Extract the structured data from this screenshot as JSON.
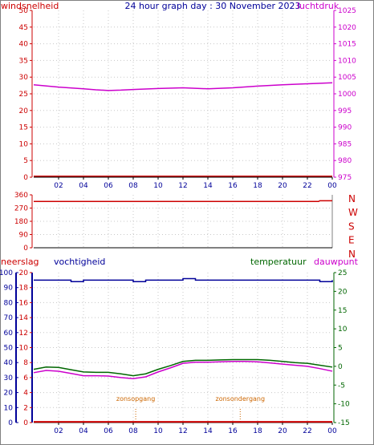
{
  "title": "24 hour graph day : 30 November 2023",
  "colors": {
    "wind": "#cc0000",
    "pressure": "#cc00cc",
    "direction": "#cc0000",
    "humidity": "#000099",
    "temperature": "#006600",
    "dewpoint": "#cc00cc",
    "rain": "#cc0000",
    "sun": "#cc6600",
    "grid": "#c8c8c8",
    "frame": "#000000"
  },
  "x_ticks": [
    "02",
    "04",
    "06",
    "08",
    "10",
    "12",
    "14",
    "16",
    "18",
    "20",
    "22",
    "00"
  ],
  "chart_data": [
    {
      "type": "line",
      "left_axis_label": "windsnelheid",
      "right_axis_label": "luchtdruk",
      "left_ylim": [
        0,
        50
      ],
      "left_ticks": [
        "0",
        "5",
        "10",
        "15",
        "20",
        "25",
        "30",
        "35",
        "40",
        "45",
        "50"
      ],
      "right_ylim": [
        975,
        1025
      ],
      "right_ticks": [
        "975",
        "980",
        "985",
        "990",
        "995",
        "1000",
        "1005",
        "1010",
        "1015",
        "1020",
        "1025"
      ],
      "x_hours": [
        0,
        2,
        4,
        5,
        6,
        7,
        8,
        10,
        12,
        14,
        16,
        18,
        20,
        22,
        24
      ],
      "series": [
        {
          "name": "windsnelheid",
          "axis": "left",
          "values": [
            0.3,
            0.3,
            0.3,
            0.3,
            0.3,
            0.3,
            0.3,
            0.3,
            0.3,
            0.3,
            0.3,
            0.3,
            0.3,
            0.3,
            0.3
          ]
        },
        {
          "name": "luchtdruk",
          "axis": "right",
          "values": [
            1002.7,
            1002.0,
            1001.5,
            1001.2,
            1001.0,
            1001.1,
            1001.3,
            1001.6,
            1001.8,
            1001.5,
            1001.8,
            1002.3,
            1002.7,
            1003.0,
            1003.3
          ]
        }
      ]
    },
    {
      "type": "line",
      "left_ylim": [
        0,
        360
      ],
      "left_ticks": [
        "0",
        "90",
        "180",
        "270",
        "360"
      ],
      "right_labels": [
        "N",
        "W",
        "S",
        "E",
        "N"
      ],
      "x_hours": [
        0,
        22.9,
        23.0,
        24
      ],
      "series": [
        {
          "name": "windrichting",
          "axis": "left",
          "values": [
            315,
            315,
            320,
            320
          ]
        }
      ]
    },
    {
      "type": "line",
      "left_axis_label": "neerslag",
      "left_ylim": [
        0,
        20
      ],
      "left_ticks": [
        "0",
        "2",
        "4",
        "6",
        "8",
        "10",
        "12",
        "14",
        "16",
        "18",
        "20"
      ],
      "humidity_axis_label": "vochtigheid",
      "humidity_ylim": [
        0,
        100
      ],
      "humidity_ticks": [
        "0",
        "10",
        "20",
        "30",
        "40",
        "50",
        "60",
        "70",
        "80",
        "90",
        "100"
      ],
      "right_axis_label": "temperatuur",
      "right_ylim": [
        -15,
        25
      ],
      "right_ticks": [
        "-15",
        "-10",
        "-5",
        "0",
        "5",
        "10",
        "15",
        "20",
        "25"
      ],
      "legend_extra": "dauwpunt",
      "sunrise_label": "zonsopgang",
      "sunset_label": "zonsondergang",
      "sunrise_hour": 8.2,
      "sunset_hour": 16.6,
      "x_hours": [
        0,
        1,
        2,
        3,
        4,
        5,
        6,
        7,
        8,
        9,
        10,
        11,
        12,
        13,
        14,
        15,
        16,
        17,
        18,
        19,
        20,
        21,
        22,
        23,
        24
      ],
      "series": [
        {
          "name": "temperatuur",
          "axis": "right",
          "values": [
            -0.8,
            -0.2,
            -0.3,
            -0.9,
            -1.5,
            -1.6,
            -1.6,
            -2.0,
            -2.5,
            -2.0,
            -0.8,
            0.2,
            1.3,
            1.6,
            1.6,
            1.7,
            1.8,
            1.8,
            1.8,
            1.6,
            1.3,
            1.0,
            0.8,
            0.3,
            -0.2
          ]
        },
        {
          "name": "dauwpunt",
          "axis": "right",
          "values": [
            -1.7,
            -1.1,
            -1.3,
            -1.9,
            -2.5,
            -2.5,
            -2.6,
            -3.0,
            -3.3,
            -2.8,
            -1.5,
            -0.4,
            0.8,
            1.1,
            1.1,
            1.2,
            1.3,
            1.3,
            1.2,
            0.9,
            0.6,
            0.3,
            0.0,
            -0.6,
            -1.3
          ]
        },
        {
          "name": "vochtigheid",
          "axis": "humidity",
          "values": [
            95,
            95,
            95,
            94,
            95,
            95,
            95,
            95,
            94,
            95,
            95,
            95,
            96,
            95,
            95,
            95,
            95,
            95,
            95,
            95,
            95,
            95,
            95,
            94,
            95
          ]
        },
        {
          "name": "neerslag",
          "axis": "left",
          "values": [
            0.1,
            0.1,
            0.1,
            0.1,
            0.1,
            0.1,
            0.1,
            0.1,
            0.1,
            0.1,
            0.1,
            0.1,
            0.1,
            0.1,
            0.1,
            0.1,
            0.1,
            0.1,
            0.1,
            0.1,
            0.1,
            0.1,
            0.1,
            0.1,
            0.1
          ]
        }
      ]
    }
  ]
}
